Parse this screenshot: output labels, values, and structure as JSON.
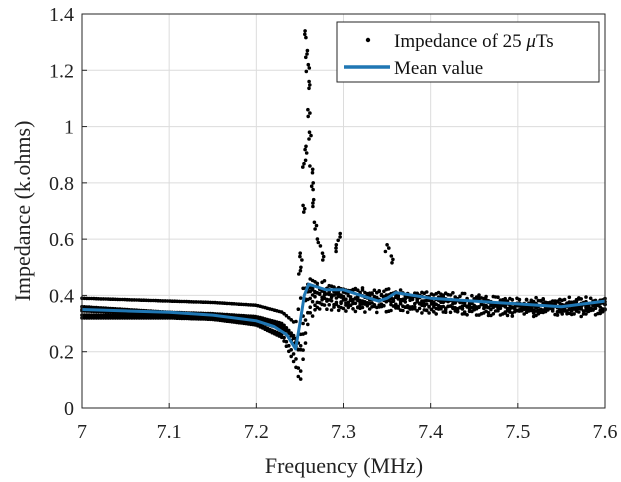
{
  "chart_data": {
    "type": "scatter",
    "title": "",
    "xlabel": "Frequency (MHz)",
    "ylabel": "Impedance (k.ohms)",
    "xlim": [
      7.0,
      7.6
    ],
    "ylim": [
      0,
      1.4
    ],
    "xticks": [
      "7",
      "7.1",
      "7.2",
      "7.3",
      "7.4",
      "7.5",
      "7.6"
    ],
    "yticks": [
      "0",
      "0.2",
      "0.4",
      "0.6",
      "0.8",
      "1",
      "1.2",
      "1.4"
    ],
    "grid": true,
    "legend_position": "top-right",
    "legend": [
      {
        "label_main": "Impedance of 25 ",
        "label_mu": "μ",
        "label_tail": "Ts",
        "marker": "dot",
        "color": "#000000"
      },
      {
        "label_main": "Mean value",
        "marker": "line",
        "color": "#1f77b4"
      }
    ],
    "series": [
      {
        "name": "Impedance of 25 μTs",
        "style": "scatter",
        "color": "#000000",
        "curves": [
          {
            "x": [
              7.0,
              7.05,
              7.1,
              7.15,
              7.2,
              7.23,
              7.245,
              7.25,
              7.255,
              7.26,
              7.27,
              7.3,
              7.35,
              7.4,
              7.5,
              7.6
            ],
            "y": [
              0.39,
              0.385,
              0.38,
              0.375,
              0.365,
              0.34,
              0.3,
              0.38,
              0.44,
              0.43,
              0.42,
              0.41,
              0.4,
              0.39,
              0.37,
              0.38
            ]
          },
          {
            "x": [
              7.0,
              7.05,
              7.1,
              7.15,
              7.2,
              7.23,
              7.245,
              7.25,
              7.255,
              7.26,
              7.27,
              7.3,
              7.35,
              7.4,
              7.5,
              7.6
            ],
            "y": [
              0.36,
              0.35,
              0.34,
              0.33,
              0.31,
              0.28,
              0.22,
              0.2,
              0.3,
              0.4,
              0.41,
              0.4,
              0.39,
              0.38,
              0.36,
              0.37
            ]
          },
          {
            "x": [
              7.0,
              7.05,
              7.1,
              7.15,
              7.2,
              7.23,
              7.245,
              7.25,
              7.255,
              7.26,
              7.27,
              7.3,
              7.35,
              7.4,
              7.5,
              7.6
            ],
            "y": [
              0.33,
              0.33,
              0.325,
              0.32,
              0.3,
              0.26,
              0.18,
              0.12,
              0.25,
              0.35,
              0.38,
              0.37,
              0.37,
              0.36,
              0.35,
              0.36
            ]
          },
          {
            "x": [
              7.0,
              7.05,
              7.1,
              7.15,
              7.2,
              7.23,
              7.245,
              7.25,
              7.255,
              7.26,
              7.27,
              7.3,
              7.35,
              7.4,
              7.5,
              7.6
            ],
            "y": [
              0.32,
              0.32,
              0.32,
              0.315,
              0.295,
              0.25,
              0.15,
              0.09,
              0.2,
              0.32,
              0.36,
              0.36,
              0.35,
              0.35,
              0.34,
              0.34
            ]
          },
          {
            "x": [
              7.0,
              7.05,
              7.1,
              7.15,
              7.2,
              7.23,
              7.245,
              7.25,
              7.255,
              7.26,
              7.27,
              7.3,
              7.35,
              7.4,
              7.5,
              7.6
            ],
            "y": [
              0.345,
              0.34,
              0.335,
              0.33,
              0.32,
              0.29,
              0.24,
              0.19,
              0.35,
              0.45,
              0.44,
              0.43,
              0.41,
              0.4,
              0.38,
              0.38
            ]
          },
          {
            "x": [
              7.0,
              7.05,
              7.1,
              7.15,
              7.2,
              7.23,
              7.245,
              7.25,
              7.255,
              7.26,
              7.27,
              7.3,
              7.35,
              7.4,
              7.5,
              7.6
            ],
            "y": [
              0.35,
              0.345,
              0.34,
              0.335,
              0.325,
              0.3,
              0.25,
              0.22,
              0.38,
              0.42,
              0.4,
              0.38,
              0.38,
              0.37,
              0.36,
              0.35
            ]
          }
        ],
        "peaks": [
          {
            "x": 7.257,
            "y": 1.34
          },
          {
            "x": 7.258,
            "y": 1.27
          },
          {
            "x": 7.259,
            "y": 1.22
          },
          {
            "x": 7.26,
            "y": 1.16
          },
          {
            "x": 7.261,
            "y": 1.06
          },
          {
            "x": 7.262,
            "y": 0.98
          },
          {
            "x": 7.256,
            "y": 0.93
          },
          {
            "x": 7.255,
            "y": 0.88
          },
          {
            "x": 7.263,
            "y": 0.86
          },
          {
            "x": 7.264,
            "y": 0.8
          },
          {
            "x": 7.266,
            "y": 0.74
          },
          {
            "x": 7.254,
            "y": 0.72
          },
          {
            "x": 7.268,
            "y": 0.66
          },
          {
            "x": 7.272,
            "y": 0.6
          },
          {
            "x": 7.276,
            "y": 0.55
          },
          {
            "x": 7.29,
            "y": 0.58
          },
          {
            "x": 7.295,
            "y": 0.62
          },
          {
            "x": 7.35,
            "y": 0.58
          },
          {
            "x": 7.355,
            "y": 0.54
          },
          {
            "x": 7.252,
            "y": 0.55
          },
          {
            "x": 7.25,
            "y": 0.5
          }
        ]
      },
      {
        "name": "Mean value",
        "style": "line",
        "color": "#1f77b4",
        "x": [
          7.0,
          7.05,
          7.1,
          7.15,
          7.2,
          7.22,
          7.235,
          7.245,
          7.25,
          7.255,
          7.26,
          7.27,
          7.28,
          7.3,
          7.32,
          7.34,
          7.35,
          7.36,
          7.4,
          7.45,
          7.5,
          7.55,
          7.6
        ],
        "y": [
          0.35,
          0.345,
          0.34,
          0.33,
          0.31,
          0.29,
          0.26,
          0.21,
          0.3,
          0.4,
          0.44,
          0.43,
          0.42,
          0.42,
          0.4,
          0.38,
          0.39,
          0.41,
          0.39,
          0.38,
          0.37,
          0.36,
          0.38
        ]
      }
    ]
  }
}
